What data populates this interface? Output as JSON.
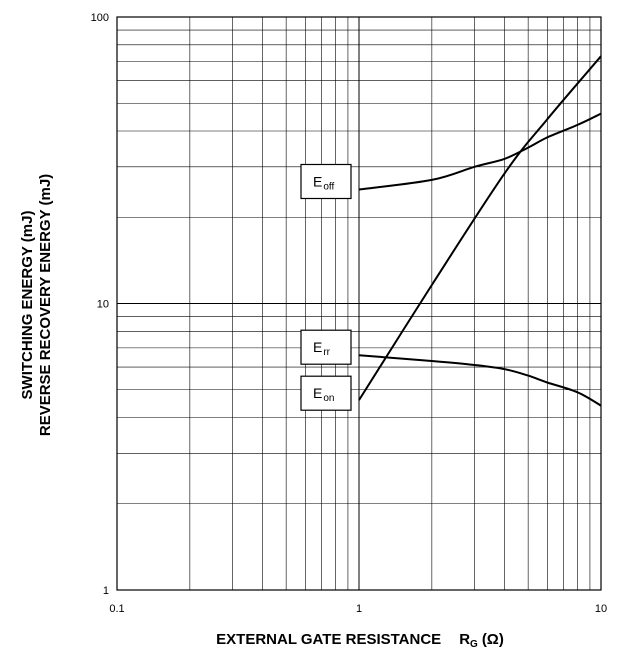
{
  "chart_data": {
    "type": "line",
    "xscale": "log",
    "yscale": "log",
    "xlim": [
      0.1,
      10
    ],
    "ylim": [
      1,
      100
    ],
    "grid": true,
    "xticks": [
      {
        "value": 0.1,
        "label": "0.1"
      },
      {
        "value": 1,
        "label": "1"
      },
      {
        "value": 10,
        "label": "10"
      }
    ],
    "yticks": [
      {
        "value": 1,
        "label": "1"
      },
      {
        "value": 10,
        "label": "10"
      },
      {
        "value": 100,
        "label": "100"
      }
    ],
    "xlabel": {
      "main": "EXTERNAL GATE RESISTANCE",
      "symbol": "R",
      "sub": "G",
      "unit": "(Ω)"
    },
    "ylabel": [
      "SWITCHING ENERGY (mJ)",
      "REVERSE RECOVERY ENERGY (mJ)"
    ],
    "series": [
      {
        "name": "E_off",
        "label_main": "E",
        "label_sub": "off",
        "x": [
          1,
          2,
          3,
          4,
          5,
          6,
          8,
          10
        ],
        "y": [
          25,
          27,
          30,
          32,
          35,
          38,
          42,
          46
        ]
      },
      {
        "name": "E_rr",
        "label_main": "E",
        "label_sub": "rr",
        "x": [
          1,
          2,
          3,
          4,
          5,
          6,
          8,
          10
        ],
        "y": [
          6.6,
          6.3,
          6.1,
          5.9,
          5.6,
          5.3,
          4.9,
          4.4
        ]
      },
      {
        "name": "E_on",
        "label_main": "E",
        "label_sub": "on",
        "x": [
          1,
          2,
          4,
          6,
          10
        ],
        "y": [
          4.6,
          11.6,
          28.5,
          44,
          73
        ]
      }
    ]
  }
}
